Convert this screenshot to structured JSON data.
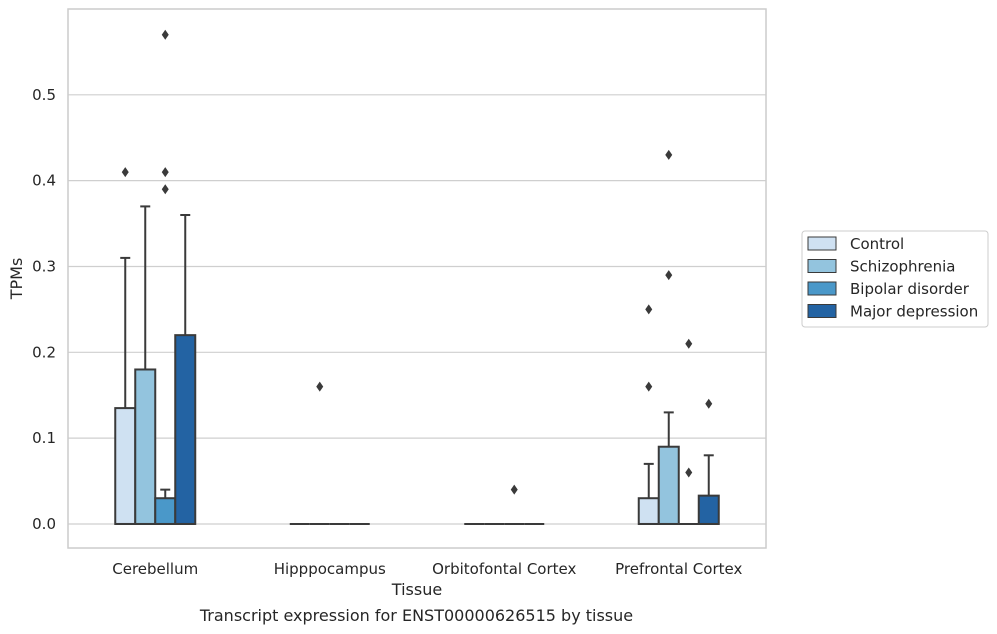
{
  "chart_data": {
    "type": "box",
    "title": "",
    "xlabel": "Tissue",
    "ylabel": "TPMs",
    "ylim": [
      -0.028,
      0.6
    ],
    "yticks": [
      "0.0",
      "0.1",
      "0.2",
      "0.3",
      "0.4",
      "0.5"
    ],
    "ytick_values": [
      0.0,
      0.1,
      0.2,
      0.3,
      0.4,
      0.5
    ],
    "grid": "horizontal",
    "legend_position": "right",
    "categories": [
      "Cerebellum",
      "Hipppocampus",
      "Orbitofontal Cortex",
      "Prefrontal Cortex"
    ],
    "series": [
      {
        "name": "Control",
        "color": "#cfe1f2",
        "boxes": [
          {
            "q1": 0.0,
            "median": 0.0,
            "q3": 0.135,
            "whisker_low": 0.0,
            "whisker_high": 0.31,
            "outliers": [
              0.41
            ]
          },
          {
            "q1": 0.0,
            "median": 0.0,
            "q3": 0.0,
            "whisker_low": 0.0,
            "whisker_high": 0.0,
            "outliers": []
          },
          {
            "q1": 0.0,
            "median": 0.0,
            "q3": 0.0,
            "whisker_low": 0.0,
            "whisker_high": 0.0,
            "outliers": []
          },
          {
            "q1": 0.0,
            "median": 0.0,
            "q3": 0.03,
            "whisker_low": 0.0,
            "whisker_high": 0.07,
            "outliers": [
              0.16,
              0.25
            ]
          }
        ]
      },
      {
        "name": "Schizophrenia",
        "color": "#93c4de",
        "boxes": [
          {
            "q1": 0.0,
            "median": 0.0,
            "q3": 0.18,
            "whisker_low": 0.0,
            "whisker_high": 0.37,
            "outliers": []
          },
          {
            "q1": 0.0,
            "median": 0.0,
            "q3": 0.0,
            "whisker_low": 0.0,
            "whisker_high": 0.0,
            "outliers": [
              0.16
            ]
          },
          {
            "q1": 0.0,
            "median": 0.0,
            "q3": 0.0,
            "whisker_low": 0.0,
            "whisker_high": 0.0,
            "outliers": []
          },
          {
            "q1": 0.0,
            "median": 0.0,
            "q3": 0.09,
            "whisker_low": 0.0,
            "whisker_high": 0.13,
            "outliers": [
              0.29,
              0.43
            ]
          }
        ]
      },
      {
        "name": "Bipolar disorder",
        "color": "#4a98c9",
        "boxes": [
          {
            "q1": 0.0,
            "median": 0.0,
            "q3": 0.03,
            "whisker_low": 0.0,
            "whisker_high": 0.04,
            "outliers": [
              0.39,
              0.41,
              0.57
            ]
          },
          {
            "q1": 0.0,
            "median": 0.0,
            "q3": 0.0,
            "whisker_low": 0.0,
            "whisker_high": 0.0,
            "outliers": []
          },
          {
            "q1": 0.0,
            "median": 0.0,
            "q3": 0.0,
            "whisker_low": 0.0,
            "whisker_high": 0.0,
            "outliers": [
              0.04
            ]
          },
          {
            "q1": 0.0,
            "median": 0.0,
            "q3": 0.0,
            "whisker_low": 0.0,
            "whisker_high": 0.0,
            "outliers": [
              0.06,
              0.21
            ]
          }
        ]
      },
      {
        "name": "Major depression",
        "color": "#2363a3",
        "boxes": [
          {
            "q1": 0.0,
            "median": 0.0,
            "q3": 0.22,
            "whisker_low": 0.0,
            "whisker_high": 0.36,
            "outliers": []
          },
          {
            "q1": 0.0,
            "median": 0.0,
            "q3": 0.0,
            "whisker_low": 0.0,
            "whisker_high": 0.0,
            "outliers": []
          },
          {
            "q1": 0.0,
            "median": 0.0,
            "q3": 0.0,
            "whisker_low": 0.0,
            "whisker_high": 0.0,
            "outliers": []
          },
          {
            "q1": 0.0,
            "median": 0.0,
            "q3": 0.033,
            "whisker_low": 0.0,
            "whisker_high": 0.08,
            "outliers": [
              0.14
            ]
          }
        ]
      }
    ]
  },
  "caption": "Transcript expression for ENST00000626515 by tissue"
}
